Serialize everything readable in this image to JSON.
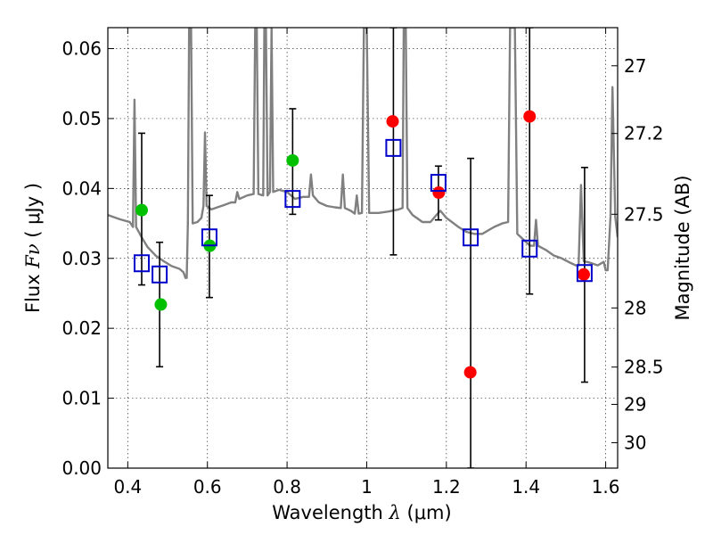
{
  "chart_data": {
    "type": "scatter",
    "xlabel": "Wavelength  λ (μm)",
    "ylabel": "Flux  Fν  ( μJy )",
    "ylabel_right": "Magnitude (AB)",
    "xlim": [
      0.35,
      1.63
    ],
    "ylim": [
      0.0,
      0.063
    ],
    "grid": true,
    "x_ticks": [
      0.4,
      0.6,
      0.8,
      1.0,
      1.2,
      1.4,
      1.6
    ],
    "x_tick_labels": [
      "0.4",
      "0.6",
      "0.8",
      "1",
      "1.2",
      "1.4",
      "1.6"
    ],
    "y_ticks": [
      0.0,
      0.01,
      0.02,
      0.03,
      0.04,
      0.05,
      0.06
    ],
    "y_tick_labels": [
      "0.00",
      "0.01",
      "0.02",
      "0.03",
      "0.04",
      "0.05",
      "0.06"
    ],
    "right_ticks": [
      {
        "label": "27",
        "mag": 27.0
      },
      {
        "label": "27.2",
        "mag": 27.2
      },
      {
        "label": "27.5",
        "mag": 27.5
      },
      {
        "label": "28",
        "mag": 28.0
      },
      {
        "label": "28.5",
        "mag": 28.5
      },
      {
        "label": "29",
        "mag": 29.0
      },
      {
        "label": "30",
        "mag": 30.0
      }
    ],
    "series": [
      {
        "marker": "circle",
        "color": "#00c000",
        "points": [
          {
            "x": 0.435,
            "y": 0.0369
          },
          {
            "x": 0.483,
            "y": 0.0234
          },
          {
            "x": 0.606,
            "y": 0.0318
          },
          {
            "x": 0.814,
            "y": 0.044
          }
        ]
      },
      {
        "marker": "circle",
        "color": "#ff0000",
        "points": [
          {
            "x": 1.065,
            "y": 0.0496
          },
          {
            "x": 1.181,
            "y": 0.0394
          },
          {
            "x": 1.26,
            "y": 0.0137
          },
          {
            "x": 1.409,
            "y": 0.0503
          },
          {
            "x": 1.545,
            "y": 0.0277
          }
        ]
      },
      {
        "marker": "open-square",
        "color": "#0000cc",
        "points": [
          {
            "x": 0.435,
            "y": 0.0293,
            "err_low": 0.0262,
            "err_high": 0.0479
          },
          {
            "x": 0.48,
            "y": 0.0277,
            "err_low": 0.0145,
            "err_high": 0.0323
          },
          {
            "x": 0.605,
            "y": 0.033,
            "err_low": 0.0244,
            "err_high": 0.039
          },
          {
            "x": 0.814,
            "y": 0.0385,
            "err_low": 0.0363,
            "err_high": 0.0514
          },
          {
            "x": 1.067,
            "y": 0.0458,
            "err_low": 0.0305,
            "err_high": 0.063
          },
          {
            "x": 1.18,
            "y": 0.0408,
            "err_low": 0.0355,
            "err_high": 0.0432
          },
          {
            "x": 1.261,
            "y": 0.033,
            "err_low": 0.0,
            "err_high": 0.0443
          },
          {
            "x": 1.409,
            "y": 0.0314,
            "err_low": 0.0249,
            "err_high": 0.063
          },
          {
            "x": 1.547,
            "y": 0.0279,
            "err_low": 0.0123,
            "err_high": 0.043
          }
        ]
      }
    ],
    "spectrum": {
      "color": "#808080",
      "points": [
        [
          0.35,
          0.0362
        ],
        [
          0.38,
          0.0356
        ],
        [
          0.405,
          0.0352
        ],
        [
          0.413,
          0.0345
        ],
        [
          0.417,
          0.0527
        ],
        [
          0.421,
          0.0345
        ],
        [
          0.435,
          0.033
        ],
        [
          0.45,
          0.0316
        ],
        [
          0.47,
          0.0304
        ],
        [
          0.49,
          0.0296
        ],
        [
          0.51,
          0.0289
        ],
        [
          0.53,
          0.0285
        ],
        [
          0.54,
          0.028
        ],
        [
          0.545,
          0.0272
        ],
        [
          0.548,
          0.0272
        ],
        [
          0.551,
          0.035
        ],
        [
          0.554,
          0.063
        ],
        [
          0.559,
          0.063
        ],
        [
          0.563,
          0.035
        ],
        [
          0.575,
          0.0352
        ],
        [
          0.585,
          0.0358
        ],
        [
          0.59,
          0.0375
        ],
        [
          0.594,
          0.048
        ],
        [
          0.598,
          0.0375
        ],
        [
          0.61,
          0.037
        ],
        [
          0.625,
          0.0373
        ],
        [
          0.64,
          0.0376
        ],
        [
          0.66,
          0.038
        ],
        [
          0.67,
          0.038
        ],
        [
          0.675,
          0.0395
        ],
        [
          0.68,
          0.0385
        ],
        [
          0.7,
          0.039
        ],
        [
          0.716,
          0.0392
        ],
        [
          0.72,
          0.063
        ],
        [
          0.724,
          0.063
        ],
        [
          0.728,
          0.0392
        ],
        [
          0.74,
          0.039
        ],
        [
          0.743,
          0.063
        ],
        [
          0.747,
          0.063
        ],
        [
          0.751,
          0.039
        ],
        [
          0.757,
          0.0395
        ],
        [
          0.761,
          0.063
        ],
        [
          0.765,
          0.0395
        ],
        [
          0.78,
          0.0398
        ],
        [
          0.8,
          0.0395
        ],
        [
          0.82,
          0.0385
        ],
        [
          0.84,
          0.0388
        ],
        [
          0.855,
          0.0388
        ],
        [
          0.86,
          0.042
        ],
        [
          0.865,
          0.039
        ],
        [
          0.88,
          0.038
        ],
        [
          0.9,
          0.0375
        ],
        [
          0.92,
          0.0373
        ],
        [
          0.935,
          0.0372
        ],
        [
          0.94,
          0.042
        ],
        [
          0.945,
          0.0372
        ],
        [
          0.96,
          0.0368
        ],
        [
          0.97,
          0.0364
        ],
        [
          0.975,
          0.039
        ],
        [
          0.98,
          0.0364
        ],
        [
          0.988,
          0.0365
        ],
        [
          0.993,
          0.063
        ],
        [
          1.0,
          0.063
        ],
        [
          1.006,
          0.0365
        ],
        [
          1.03,
          0.0365
        ],
        [
          1.055,
          0.0367
        ],
        [
          1.08,
          0.037
        ],
        [
          1.09,
          0.0372
        ],
        [
          1.093,
          0.063
        ],
        [
          1.098,
          0.063
        ],
        [
          1.102,
          0.0372
        ],
        [
          1.115,
          0.0362
        ],
        [
          1.14,
          0.0352
        ],
        [
          1.16,
          0.0352
        ],
        [
          1.175,
          0.0362
        ],
        [
          1.185,
          0.0368
        ],
        [
          1.2,
          0.0358
        ],
        [
          1.23,
          0.0345
        ],
        [
          1.25,
          0.0338
        ],
        [
          1.27,
          0.0335
        ],
        [
          1.29,
          0.0335
        ],
        [
          1.32,
          0.0345
        ],
        [
          1.34,
          0.035
        ],
        [
          1.355,
          0.0352
        ],
        [
          1.36,
          0.063
        ],
        [
          1.372,
          0.063
        ],
        [
          1.378,
          0.0335
        ],
        [
          1.395,
          0.0326
        ],
        [
          1.41,
          0.0318
        ],
        [
          1.42,
          0.0318
        ],
        [
          1.425,
          0.0355
        ],
        [
          1.43,
          0.0318
        ],
        [
          1.45,
          0.0312
        ],
        [
          1.47,
          0.0304
        ],
        [
          1.49,
          0.03
        ],
        [
          1.51,
          0.0294
        ],
        [
          1.525,
          0.029
        ],
        [
          1.532,
          0.029
        ],
        [
          1.538,
          0.0405
        ],
        [
          1.545,
          0.0296
        ],
        [
          1.56,
          0.0294
        ],
        [
          1.58,
          0.029
        ],
        [
          1.595,
          0.0295
        ],
        [
          1.6,
          0.0283
        ],
        [
          1.605,
          0.0283
        ],
        [
          1.612,
          0.036
        ],
        [
          1.617,
          0.0545
        ],
        [
          1.624,
          0.036
        ],
        [
          1.63,
          0.033
        ]
      ]
    }
  }
}
